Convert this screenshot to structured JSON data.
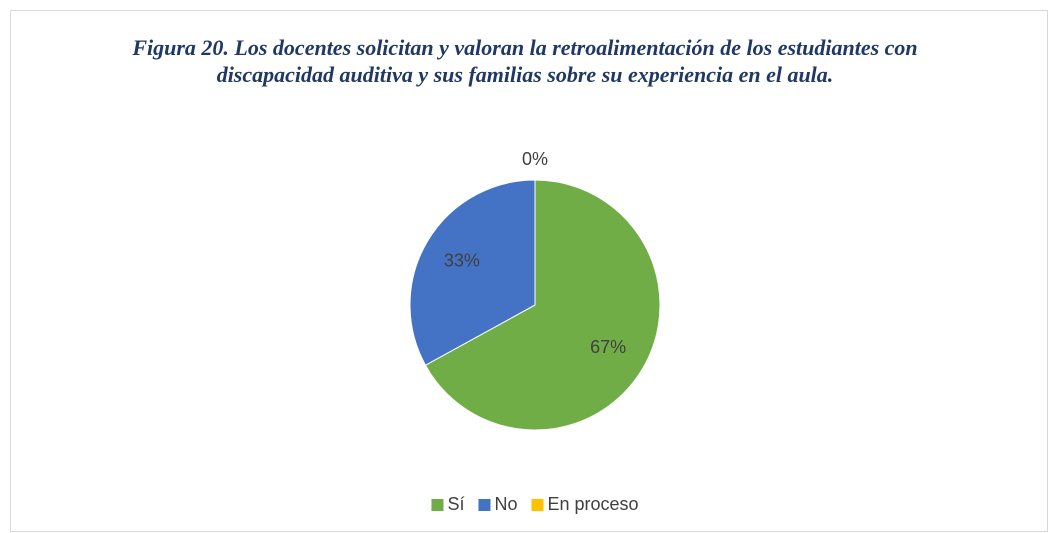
{
  "chart_data": {
    "type": "pie",
    "title": "Figura 20. Los docentes solicitan y valoran la retroalimentación de los estudiantes con discapacidad auditiva y sus familias sobre su experiencia en el aula.",
    "categories": [
      "Sí",
      "No",
      "En proceso"
    ],
    "values": [
      67,
      33,
      0
    ],
    "value_labels": [
      "67%",
      "33%",
      "0%"
    ],
    "colors": [
      "#70ad47",
      "#4472c4",
      "#ffc000"
    ],
    "legend": "bottom"
  }
}
